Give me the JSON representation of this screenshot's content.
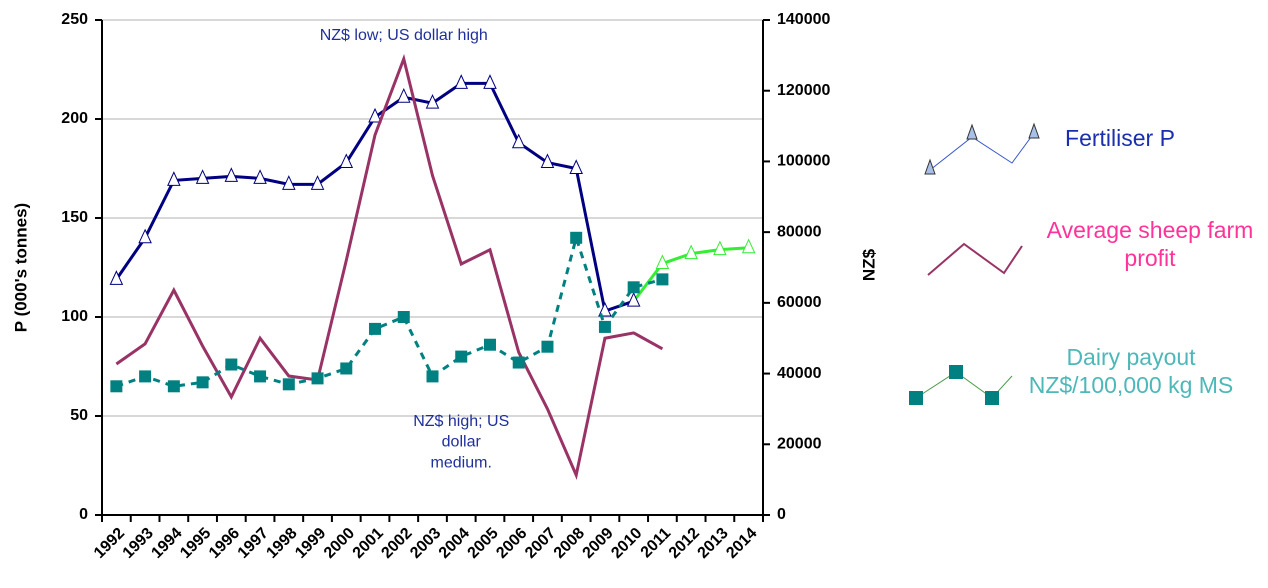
{
  "chart_data": {
    "type": "line",
    "categories": [
      "1992",
      "1993",
      "1994",
      "1995",
      "1996",
      "1997",
      "1998",
      "1999",
      "2000",
      "2001",
      "2002",
      "2003",
      "2004",
      "2005",
      "2006",
      "2007",
      "2008",
      "2009",
      "2010",
      "2011",
      "2012",
      "2013",
      "2014"
    ],
    "ylabel": "P (000's tonnes)",
    "y2label": "NZ$",
    "ylim": [
      0,
      250
    ],
    "yticks": [
      0,
      50,
      100,
      150,
      200,
      250
    ],
    "y2lim": [
      0,
      140000
    ],
    "y2ticks": [
      0,
      20000,
      40000,
      60000,
      80000,
      100000,
      120000,
      140000
    ],
    "grid": true,
    "annotations": [
      {
        "category": "2002",
        "value": 240,
        "lines": [
          "NZ$ low; US dollar high"
        ],
        "color": "#1f2f9c"
      },
      {
        "category": "2004",
        "value": 45,
        "lines": [
          "NZ$ high; US",
          "dollar",
          "medium."
        ],
        "color": "#1f2f9c"
      }
    ],
    "series": [
      {
        "name": "Fertiliser P",
        "color": "#000080",
        "projected_color": "#33ee33",
        "projected_from": "2010",
        "marker": "triangle",
        "legend_color": "#1a2fb0",
        "values": [
          119,
          140,
          169,
          170,
          171,
          170,
          167,
          167,
          178,
          201,
          211,
          208,
          218,
          218,
          188,
          178,
          175,
          103,
          108,
          127,
          132,
          134,
          135
        ]
      },
      {
        "name": "Average sheep farm profit",
        "color": "#993366",
        "axis": "y2",
        "legend_color": "#ff3399",
        "values": [
          42700,
          48400,
          63600,
          47800,
          33400,
          50000,
          39300,
          38200,
          72000,
          107500,
          129000,
          96000,
          71000,
          75000,
          46000,
          30000,
          11300,
          50000,
          51500,
          47000,
          null,
          null,
          null
        ]
      },
      {
        "name": "Dairy payout NZ$/100,000 kg MS",
        "color": "#008080",
        "marker": "square",
        "dashed": true,
        "legend_color": "#4cb8b8",
        "values": [
          65,
          70,
          65,
          67,
          76,
          70,
          66,
          69,
          74,
          94,
          100,
          70,
          80,
          86,
          77,
          85,
          140,
          95,
          115,
          119,
          null,
          null,
          null
        ]
      }
    ]
  }
}
